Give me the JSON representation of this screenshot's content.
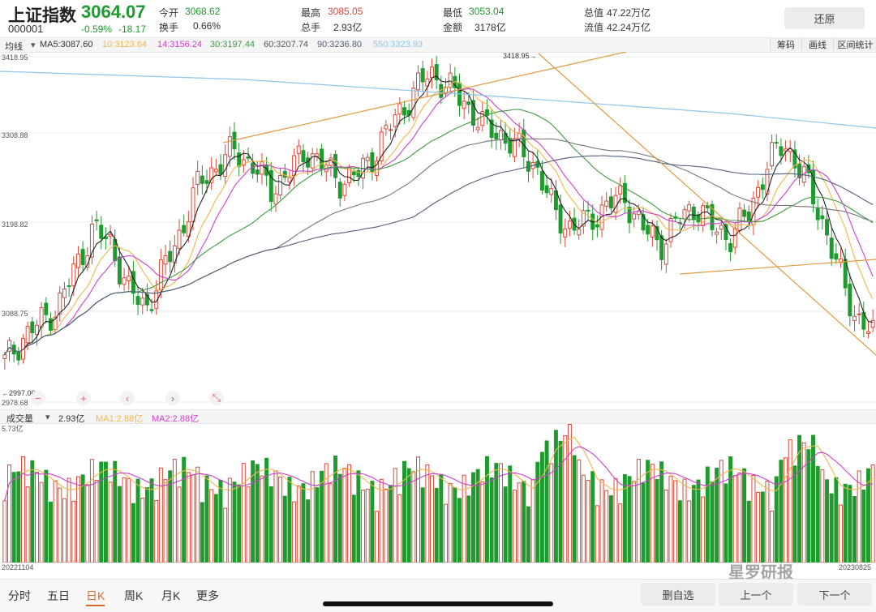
{
  "header": {
    "name": "上证指数",
    "code": "000001",
    "price": "3064.07",
    "change_pct": "-0.59%",
    "change_pts": "-18.17",
    "open_label": "今开",
    "open_value": "3068.62",
    "turnover_label": "换手",
    "turnover_value": "0.66%",
    "high_label": "最高",
    "high_value": "3085.05",
    "vol_label": "总手",
    "vol_value": "2.93亿",
    "low_label": "最低",
    "low_value": "3053.04",
    "amount_label": "金额",
    "amount_value": "3178亿",
    "mktcap_label": "总值",
    "mktcap_value": "47.22万亿",
    "float_label": "流值",
    "float_value": "42.24万亿",
    "restore_label": "还原"
  },
  "ma_bar": {
    "mode": "均线",
    "dropdown": "▾",
    "ma5": "MA5:3087.60",
    "ma10": "10:3123.84",
    "ma14": "14:3156.24",
    "ma30": "30:3197.44",
    "ma60": "60:3207.74",
    "ma90": "90:3236.80",
    "ma550": "550:3323.93"
  },
  "tools": {
    "chips": "筹码",
    "draw": "画线",
    "range": "区间统计"
  },
  "axis": {
    "y1": "3418.95",
    "y2": "3308.88",
    "y3": "3198.82",
    "y4": "3088.75",
    "y5": "2978.68",
    "hi_mark": "3418.95→",
    "lo_mark": "←2997.00",
    "vol_max": "5.73亿",
    "start_date": "20221104",
    "end_date": "20230825"
  },
  "volume_bar": {
    "label": "成交量",
    "dropdown": "▾",
    "value": "2.93亿",
    "ma1": "MA1:2.88亿",
    "ma2": "MA2:2.88亿"
  },
  "zoom": {
    "minus": "−",
    "plus": "+",
    "left": "‹",
    "right": "›",
    "collapse": "⤡"
  },
  "tabs": [
    "分时",
    "五日",
    "日K",
    "周K",
    "月K",
    "更多"
  ],
  "buttons": {
    "remove": "删自选",
    "prev": "上一个",
    "next": "下一个"
  },
  "watermark": "星罗研报",
  "colors": {
    "up": "#d94a3a",
    "down": "#1f9a2e",
    "ma5": "#222222",
    "ma10": "#f0b64a",
    "ma14": "#cc3fcc",
    "ma30": "#3f9a3f",
    "ma60": "#777777",
    "ma90": "#51607a",
    "ma550": "#8ec5ea",
    "trend": "#e09a40"
  },
  "chart_data": {
    "type": "candlestick",
    "y_range": [
      2978.68,
      3418.95
    ],
    "ma_closes_sample": [
      3030,
      3060,
      3080,
      3100,
      3150,
      3200,
      3180,
      3120,
      3100,
      3150,
      3200,
      3260,
      3280,
      3300,
      3280,
      3250,
      3270,
      3300,
      3280,
      3260,
      3270,
      3300,
      3340,
      3370,
      3400,
      3380,
      3360,
      3330,
      3320,
      3300,
      3280,
      3220,
      3200,
      3210,
      3230,
      3240,
      3200,
      3180,
      3210,
      3230,
      3200,
      3190,
      3220,
      3280,
      3310,
      3270,
      3220,
      3150,
      3090,
      3064
    ]
  }
}
